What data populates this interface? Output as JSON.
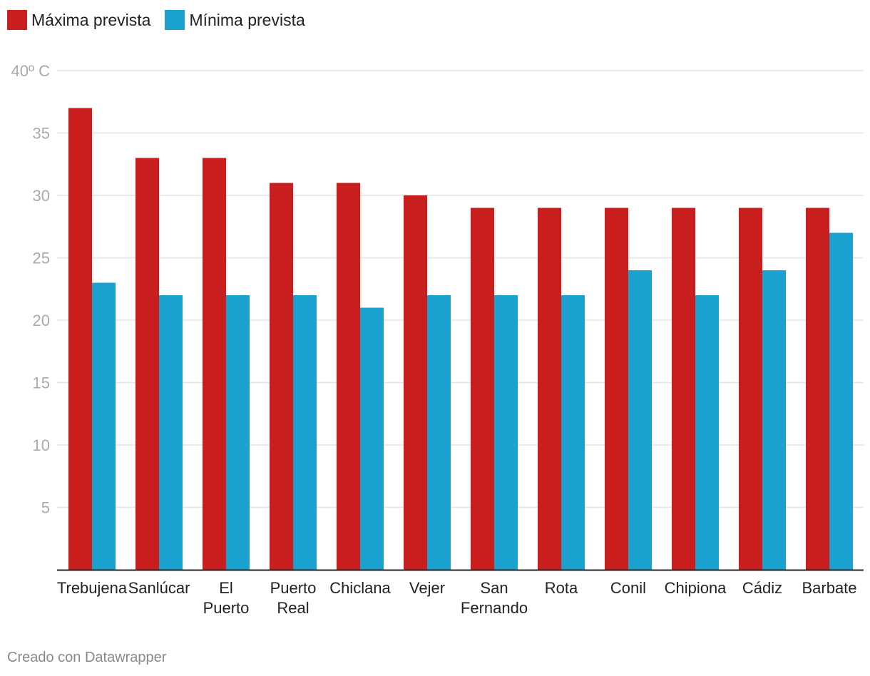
{
  "legend": {
    "max_label": "Máxima prevista",
    "min_label": "Mínima prevista"
  },
  "colors": {
    "max": "#c81e1e",
    "min": "#1aa1cf",
    "grid": "#e3e3e3",
    "axis": "#222222",
    "tick_text": "#aaaaaa",
    "label_text": "#222222"
  },
  "footer": {
    "credit": "Creado con Datawrapper"
  },
  "chart_data": {
    "type": "bar",
    "title": "",
    "xlabel": "",
    "ylabel": "",
    "ylim": [
      0,
      40
    ],
    "y_ticks": [
      {
        "value": 40,
        "label": "40º C"
      },
      {
        "value": 35,
        "label": "35"
      },
      {
        "value": 30,
        "label": "30"
      },
      {
        "value": 25,
        "label": "25"
      },
      {
        "value": 20,
        "label": "20"
      },
      {
        "value": 15,
        "label": "15"
      },
      {
        "value": 10,
        "label": "10"
      },
      {
        "value": 5,
        "label": "5"
      }
    ],
    "categories": [
      [
        "Trebujena"
      ],
      [
        "Sanlúcar"
      ],
      [
        "El",
        "Puerto"
      ],
      [
        "Puerto",
        "Real"
      ],
      [
        "Chiclana"
      ],
      [
        "Vejer"
      ],
      [
        "San",
        "Fernando"
      ],
      [
        "Rota"
      ],
      [
        "Conil"
      ],
      [
        "Chipiona"
      ],
      [
        "Cádiz"
      ],
      [
        "Barbate"
      ]
    ],
    "series": [
      {
        "name": "Máxima prevista",
        "values": [
          37,
          33,
          33,
          31,
          31,
          30,
          29,
          29,
          29,
          29,
          29,
          29
        ]
      },
      {
        "name": "Mínima prevista",
        "values": [
          23,
          22,
          22,
          22,
          21,
          22,
          22,
          22,
          24,
          22,
          24,
          27
        ]
      }
    ]
  }
}
